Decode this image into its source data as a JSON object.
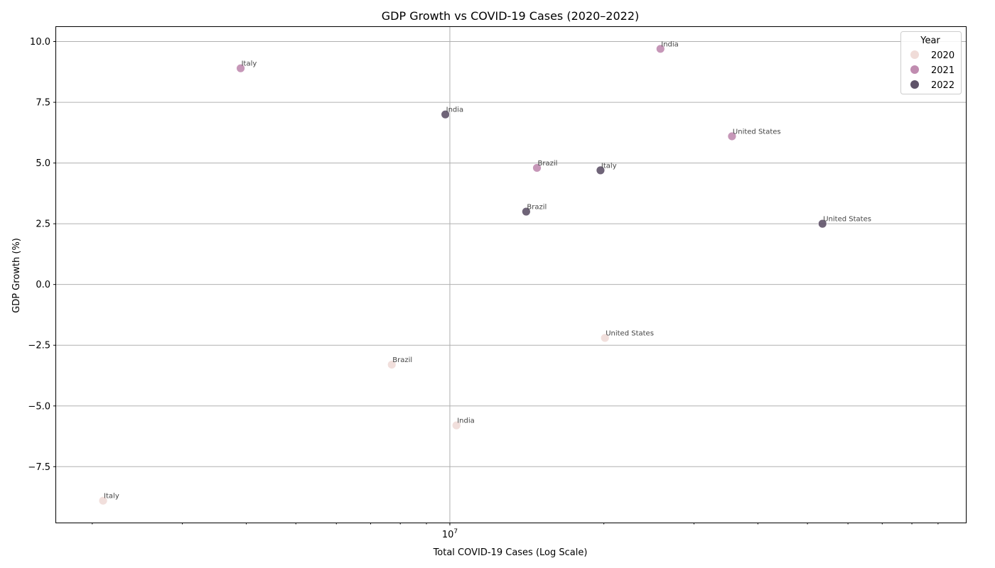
{
  "chart_data": {
    "type": "scatter",
    "title": "GDP Growth vs COVID-19 Cases (2020–2022)",
    "xlabel": "Total COVID-19 Cases (Log Scale)",
    "ylabel": "GDP Growth (%)",
    "xscale": "log",
    "xlim": [
      1700000,
      102000000
    ],
    "ylim": [
      -9.8,
      10.6
    ],
    "x_ticks": [
      {
        "value": 10000000,
        "label": "10^7"
      }
    ],
    "y_ticks": [
      {
        "value": 10.0,
        "label": "10.0"
      },
      {
        "value": 7.5,
        "label": "7.5"
      },
      {
        "value": 5.0,
        "label": "5.0"
      },
      {
        "value": 2.5,
        "label": "2.5"
      },
      {
        "value": 0.0,
        "label": "0.0"
      },
      {
        "value": -2.5,
        "label": "−2.5"
      },
      {
        "value": -5.0,
        "label": "−5.0"
      },
      {
        "value": -7.5,
        "label": "−7.5"
      }
    ],
    "grid": true,
    "legend": {
      "title": "Year",
      "position": "top-right",
      "entries": [
        {
          "label": "2020",
          "color": "#f0dcd8"
        },
        {
          "label": "2021",
          "color": "#c08cb0"
        },
        {
          "label": "2022",
          "color": "#5f5369"
        }
      ]
    },
    "series": [
      {
        "name": "2020",
        "color": "#f0dcd8",
        "points": [
          {
            "label": "Italy",
            "x": 2100000,
            "y": -8.9
          },
          {
            "label": "Brazil",
            "x": 7700000,
            "y": -3.3
          },
          {
            "label": "India",
            "x": 10300000,
            "y": -5.8
          },
          {
            "label": "United States",
            "x": 20100000,
            "y": -2.2
          }
        ]
      },
      {
        "name": "2021",
        "color": "#c08cb0",
        "points": [
          {
            "label": "Italy",
            "x": 3900000,
            "y": 8.9
          },
          {
            "label": "Brazil",
            "x": 14800000,
            "y": 4.8
          },
          {
            "label": "India",
            "x": 25800000,
            "y": 9.7
          },
          {
            "label": "United States",
            "x": 35600000,
            "y": 6.1
          }
        ]
      },
      {
        "name": "2022",
        "color": "#5f5369",
        "points": [
          {
            "label": "India",
            "x": 9800000,
            "y": 7.0
          },
          {
            "label": "Brazil",
            "x": 14100000,
            "y": 3.0
          },
          {
            "label": "Italy",
            "x": 19700000,
            "y": 4.7
          },
          {
            "label": "United States",
            "x": 53500000,
            "y": 2.5
          }
        ]
      }
    ]
  }
}
